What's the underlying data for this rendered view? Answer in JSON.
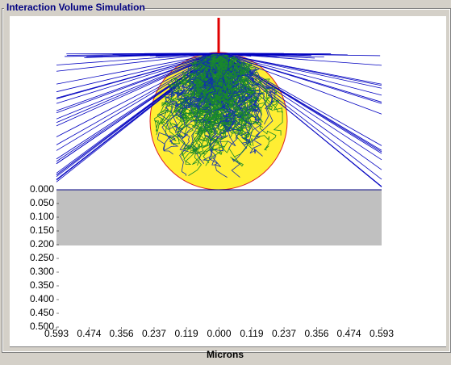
{
  "chart_data": {
    "type": "simulation",
    "title": "Interaction Volume Simulation",
    "xlabel": "Microns",
    "xlim": [
      -0.593,
      0.593
    ],
    "xticks": [
      {
        "value": -0.593,
        "label": "0.593"
      },
      {
        "value": -0.474,
        "label": "0.474"
      },
      {
        "value": -0.356,
        "label": "0.356"
      },
      {
        "value": -0.237,
        "label": "0.237"
      },
      {
        "value": -0.119,
        "label": "0.119"
      },
      {
        "value": 0,
        "label": "0.000"
      },
      {
        "value": 0.119,
        "label": "0.119"
      },
      {
        "value": 0.237,
        "label": "0.237"
      },
      {
        "value": 0.356,
        "label": "0.356"
      },
      {
        "value": 0.474,
        "label": "0.474"
      },
      {
        "value": 0.593,
        "label": "0.593"
      }
    ],
    "ylim": [
      0,
      0.5
    ],
    "yticks": [
      {
        "value": 0,
        "label": "0.000"
      },
      {
        "value": 0.05,
        "label": "0.050"
      },
      {
        "value": 0.1,
        "label": "0.100"
      },
      {
        "value": 0.15,
        "label": "0.150"
      },
      {
        "value": 0.2,
        "label": "0.200"
      },
      {
        "value": 0.25,
        "label": "0.250"
      },
      {
        "value": 0.3,
        "label": "0.300"
      },
      {
        "value": 0.35,
        "label": "0.350"
      },
      {
        "value": 0.4,
        "label": "0.400"
      },
      {
        "value": 0.45,
        "label": "0.450"
      },
      {
        "value": 0.5,
        "label": "0.500"
      }
    ]
  }
}
